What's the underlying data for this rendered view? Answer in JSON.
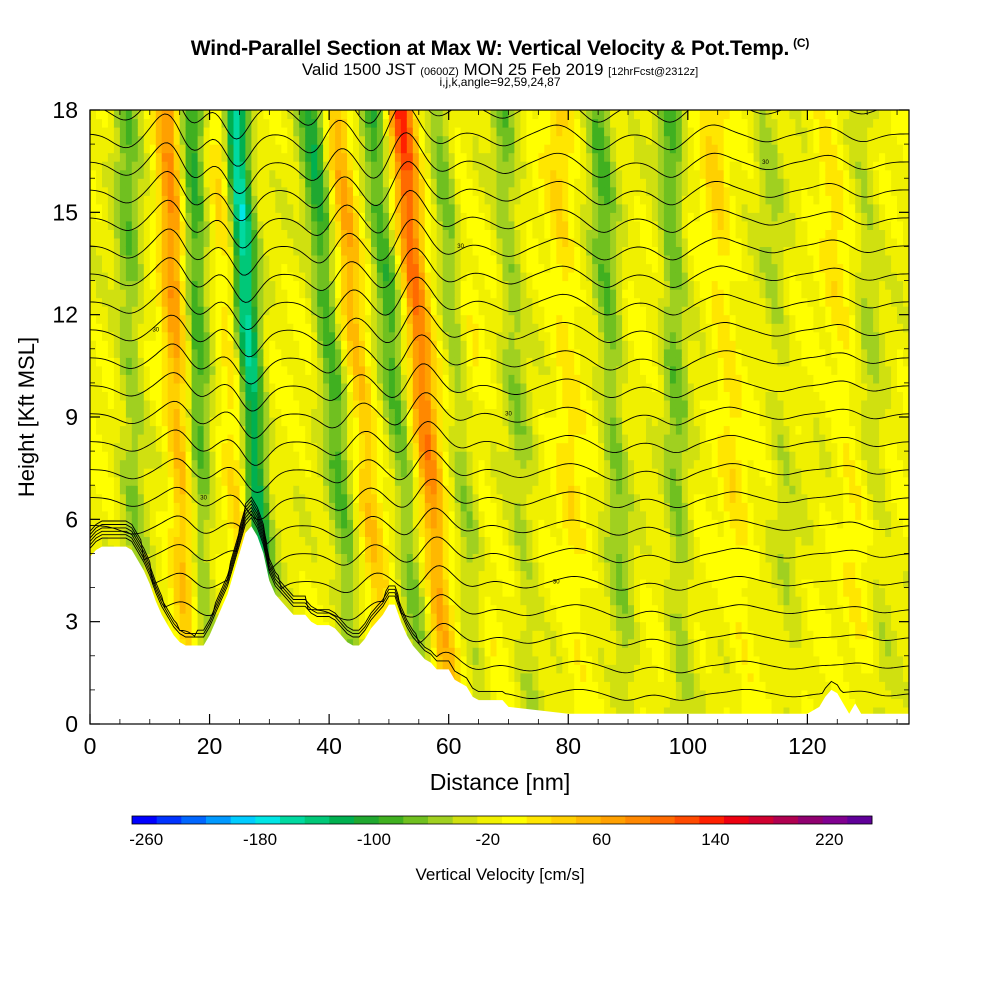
{
  "chart_data": {
    "type": "heatmap",
    "title": "Wind-Parallel Section at Max W: Vertical Velocity & Pot.Temp.",
    "title_mark": "(C)",
    "subtitle_main": "Valid 1500 JST",
    "subtitle_utc": "(0600Z)",
    "subtitle_date": "MON 25 Feb 2019",
    "subtitle_fcst": "[12hrFcst@2312z]",
    "subtitle_line3": "i,j,k,angle=92,59,24,87",
    "xlabel": "Distance [nm]",
    "ylabel": "Height [Kft MSL]",
    "xlim": [
      0,
      137
    ],
    "ylim": [
      0,
      18
    ],
    "xticks": [
      0,
      20,
      40,
      60,
      80,
      100,
      120
    ],
    "yticks": [
      0,
      3,
      6,
      9,
      12,
      15,
      18
    ],
    "colorbar": {
      "label": "Vertical Velocity [cm/s]",
      "min": -270,
      "max": 250,
      "step": 20,
      "tick_values": [
        -260,
        -180,
        -100,
        -20,
        60,
        140,
        220
      ],
      "colors": [
        "#0000ff",
        "#0033ff",
        "#0066ff",
        "#0099ff",
        "#00ccff",
        "#00e6e6",
        "#00d9a0",
        "#00c878",
        "#00b050",
        "#20a830",
        "#40b020",
        "#70c020",
        "#a0d020",
        "#d0e010",
        "#f0f000",
        "#ffff00",
        "#ffe600",
        "#ffd000",
        "#ffb800",
        "#ffa000",
        "#ff8800",
        "#ff6a00",
        "#ff4a00",
        "#ff2000",
        "#ee0010",
        "#d00030",
        "#b00050",
        "#900070",
        "#800090",
        "#600099"
      ]
    },
    "terrain_profile": {
      "distance": [
        0,
        1,
        2,
        3,
        4,
        5,
        6,
        7,
        8,
        9,
        10,
        11,
        12,
        13,
        14,
        15,
        16,
        17,
        18,
        19,
        20,
        21,
        22,
        23,
        24,
        25,
        26,
        27,
        28,
        29,
        30,
        31,
        32,
        33,
        34,
        35,
        36,
        37,
        38,
        39,
        40,
        41,
        42,
        43,
        44,
        45,
        46,
        47,
        48,
        49,
        50,
        51,
        52,
        53,
        54,
        55,
        56,
        57,
        58,
        59,
        60,
        61,
        62,
        63,
        64,
        65,
        66,
        67,
        68,
        69,
        70,
        80,
        90,
        100,
        110,
        115,
        120,
        122,
        123,
        124,
        125,
        126,
        127,
        128,
        129,
        130,
        131,
        137
      ],
      "height_kft": [
        4.9,
        5.1,
        5.2,
        5.2,
        5.2,
        5.2,
        5.2,
        5.1,
        4.8,
        4.5,
        4.1,
        3.6,
        3.2,
        2.9,
        2.6,
        2.4,
        2.3,
        2.3,
        2.3,
        2.3,
        2.6,
        3.0,
        3.4,
        3.8,
        4.4,
        5.0,
        5.6,
        5.8,
        5.5,
        5.0,
        4.2,
        3.8,
        3.6,
        3.4,
        3.2,
        3.2,
        3.2,
        3.0,
        2.9,
        2.9,
        2.9,
        2.8,
        2.6,
        2.4,
        2.3,
        2.3,
        2.5,
        2.8,
        3.0,
        3.2,
        3.5,
        3.5,
        3.0,
        2.6,
        2.3,
        2.1,
        1.9,
        1.8,
        1.6,
        1.6,
        1.6,
        1.3,
        1.2,
        1.1,
        0.8,
        0.7,
        0.7,
        0.7,
        0.7,
        0.7,
        0.5,
        0.3,
        0.3,
        0.3,
        0.3,
        0.3,
        0.3,
        0.5,
        0.8,
        1.0,
        0.9,
        0.6,
        0.3,
        0.6,
        0.3,
        0.3,
        0.3,
        0.3
      ]
    },
    "updraft_bands": [
      {
        "x_base": 17,
        "x_top": 13,
        "w": 120
      },
      {
        "x_base": 27,
        "x_top": 22,
        "w": 80
      },
      {
        "x_base": 50,
        "x_top": 41,
        "w": 90
      },
      {
        "x_base": 60,
        "x_top": 52,
        "w": 160
      },
      {
        "x_base": 67,
        "x_top": 60,
        "w": 70
      },
      {
        "x_base": 82,
        "x_top": 78,
        "w": 45
      },
      {
        "x_base": 110,
        "x_top": 104,
        "w": 45
      },
      {
        "x_base": 130,
        "x_top": 123,
        "w": 35
      }
    ],
    "downdraft_bands": [
      {
        "x_base": 8,
        "x_top": 6,
        "w": -70
      },
      {
        "x_base": 19,
        "x_top": 17,
        "w": -110
      },
      {
        "x_base": 30,
        "x_top": 24,
        "w": -210
      },
      {
        "x_base": 45,
        "x_top": 37,
        "w": -110
      },
      {
        "x_base": 56,
        "x_top": 47,
        "w": -100
      },
      {
        "x_base": 66,
        "x_top": 59,
        "w": -110
      },
      {
        "x_base": 74,
        "x_top": 69,
        "w": -60
      },
      {
        "x_base": 90,
        "x_top": 85,
        "w": -80
      },
      {
        "x_base": 99,
        "x_top": 97,
        "w": -80
      },
      {
        "x_base": 118,
        "x_top": 113,
        "w": -40
      },
      {
        "x_base": 133,
        "x_top": 129,
        "w": -40
      }
    ],
    "isentropes": {
      "levels_count": 22,
      "label_text": "30"
    }
  }
}
